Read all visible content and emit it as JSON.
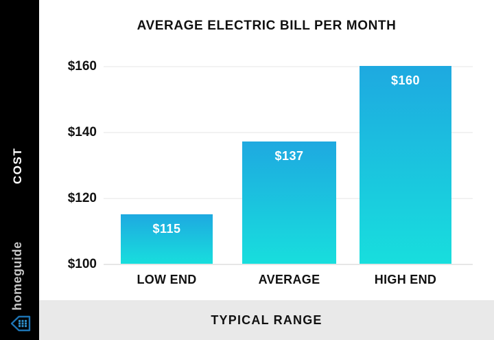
{
  "sidebar": {
    "cost_label": "COST",
    "brand_name": "homeguide",
    "colors": {
      "background": "#000000",
      "cost_text": "#ffffff",
      "brand_text": "#c7c7c7",
      "icon_blue": "#1d74b4"
    }
  },
  "chart_data": {
    "type": "bar",
    "title": "AVERAGE ELECTRIC BILL PER MONTH",
    "categories": [
      "LOW END",
      "AVERAGE",
      "HIGH END"
    ],
    "values": [
      115,
      137,
      160
    ],
    "value_labels": [
      "$115",
      "$137",
      "$160"
    ],
    "y_ticks": [
      {
        "label": "$160",
        "value": 160
      },
      {
        "label": "$140",
        "value": 140
      },
      {
        "label": "$120",
        "value": 120
      },
      {
        "label": "$100",
        "value": 100
      }
    ],
    "ylim": [
      100,
      160
    ],
    "xlabel": "TYPICAL RANGE",
    "ylabel": "COST",
    "grid": true,
    "legend": "none",
    "bar_gradient_top": "#1ea9e0",
    "bar_gradient_bottom": "#18dedd"
  },
  "footer": {
    "label": "TYPICAL RANGE",
    "background": "#e9e9e9"
  }
}
